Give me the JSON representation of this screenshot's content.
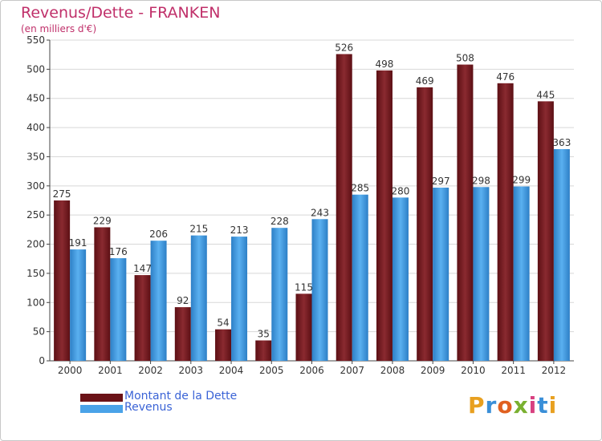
{
  "header": {
    "title": "Revenus/Dette - FRANKEN",
    "subtitle": "(en milliers d'€)"
  },
  "legend": {
    "debt_label": "Montant de la Dette",
    "revenue_label": "Revenus"
  },
  "logo": {
    "text": "Proxiti"
  },
  "colors": {
    "debt": "#7a1f24",
    "revenue": "#4aa3e8",
    "title": "#c0306a"
  },
  "chart_data": {
    "type": "bar",
    "title": "Revenus/Dette - FRANKEN",
    "subtitle": "(en milliers d'€)",
    "categories": [
      "2000",
      "2001",
      "2002",
      "2003",
      "2004",
      "2005",
      "2006",
      "2007",
      "2008",
      "2009",
      "2010",
      "2011",
      "2012"
    ],
    "series": [
      {
        "name": "Montant de la Dette",
        "values": [
          275,
          229,
          147,
          92,
          54,
          35,
          115,
          526,
          498,
          469,
          508,
          476,
          445
        ]
      },
      {
        "name": "Revenus",
        "values": [
          191,
          176,
          206,
          215,
          213,
          228,
          243,
          285,
          280,
          297,
          298,
          299,
          363
        ]
      }
    ],
    "ylim": [
      0,
      550
    ],
    "yticks": [
      0,
      50,
      100,
      150,
      200,
      250,
      300,
      350,
      400,
      450,
      500,
      550
    ],
    "grid": true,
    "legend_position": "bottom-left"
  }
}
